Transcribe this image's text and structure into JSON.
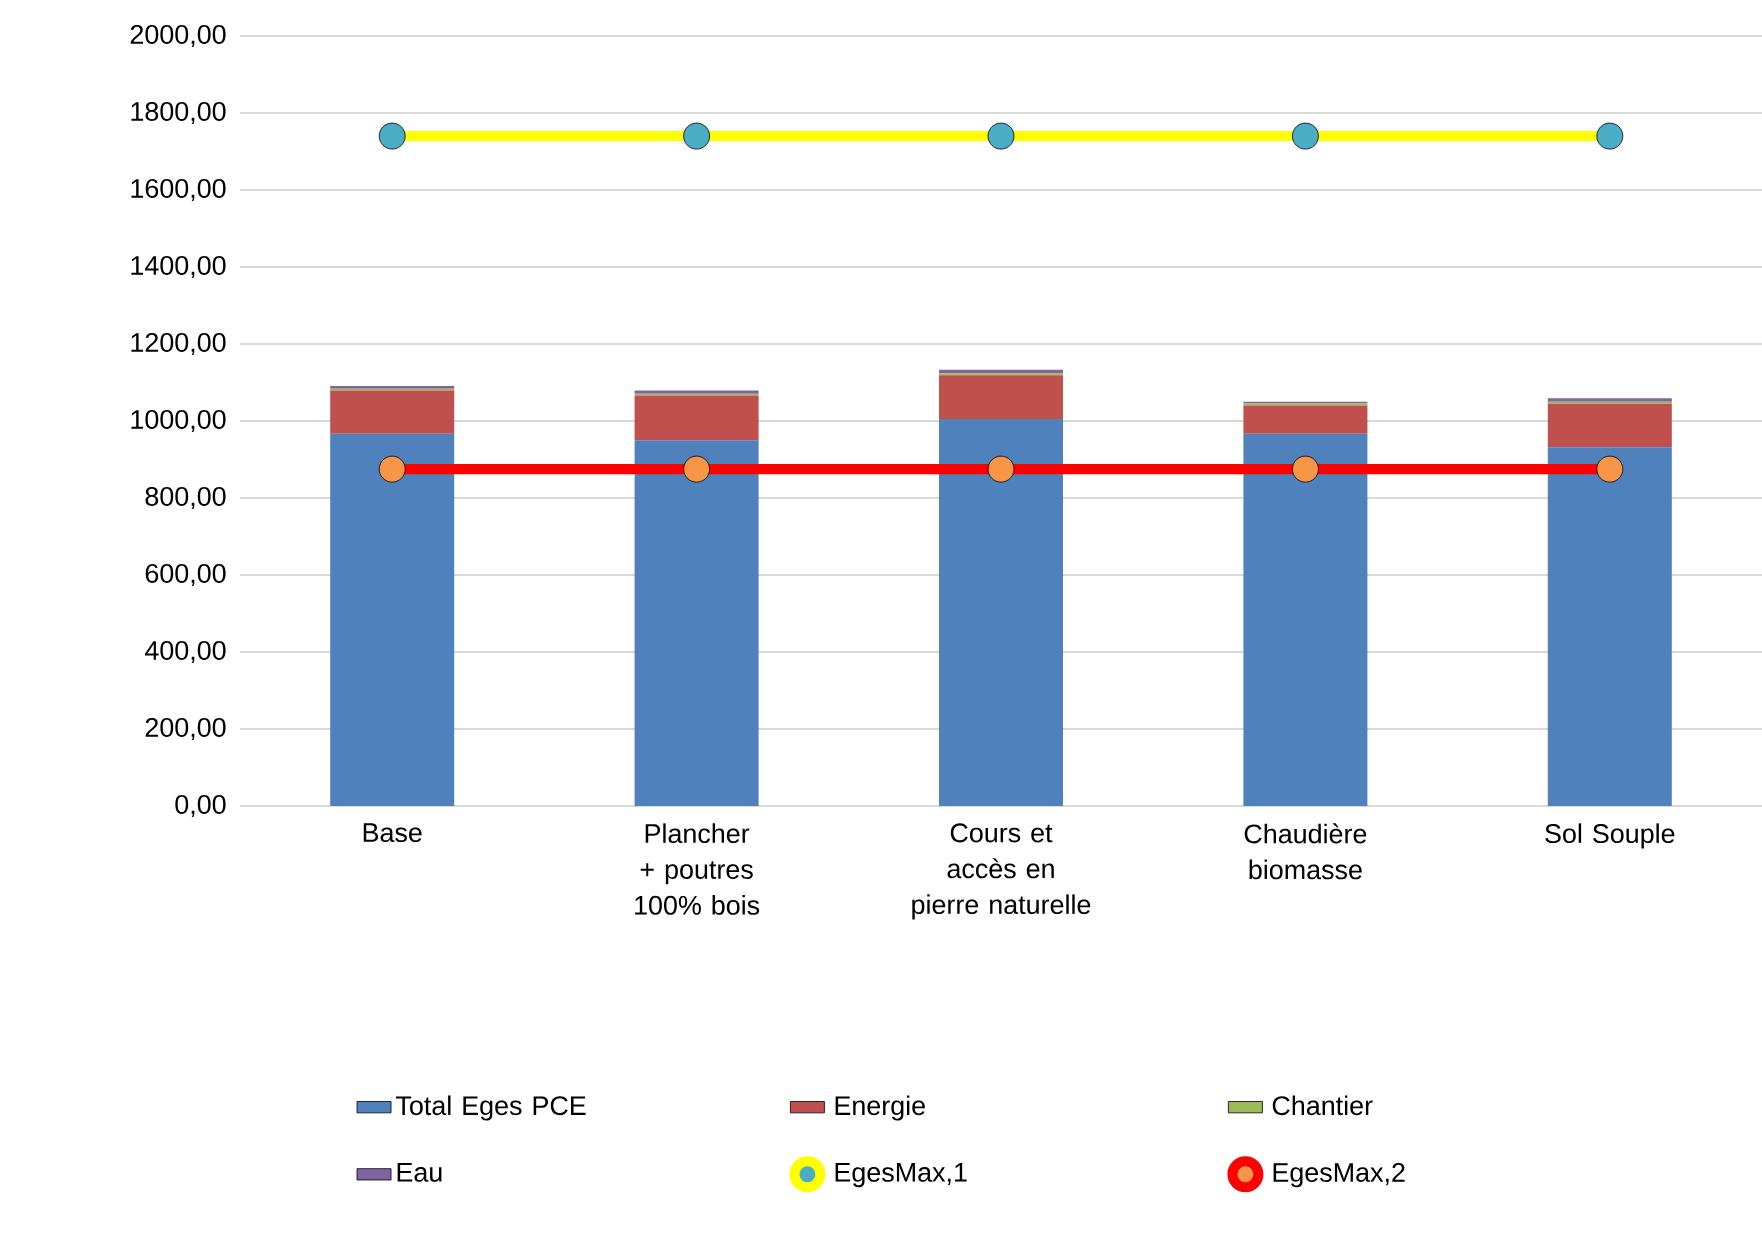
{
  "chart_data": {
    "type": "bar",
    "stacked": true,
    "categories": [
      "Base",
      "Plancher + poutres 100% bois",
      "Cours et accès en pierre naturelle",
      "Chaudière biomasse",
      "Sol Souple"
    ],
    "series": [
      {
        "name": "Total Eges PCE",
        "color": "#4f81bd",
        "values": [
          967,
          950,
          1005,
          967,
          932
        ]
      },
      {
        "name": "Energie",
        "color": "#c0504d",
        "values": [
          112,
          116,
          114,
          73,
          113
        ]
      },
      {
        "name": "Chantier",
        "color": "#9bbb59",
        "values": [
          5,
          5,
          5,
          6,
          5
        ]
      },
      {
        "name": "Eau",
        "color": "#8064a2",
        "values": [
          7,
          8,
          9,
          4,
          9
        ]
      },
      {
        "name": "EgesMax,1",
        "type": "line",
        "color": "#ffff00",
        "colors": [
          "#4bacc6",
          "#4bacc6",
          "#4bacc6",
          "#4bacc6",
          "#4bacc6"
        ],
        "marker": "circle",
        "values": [
          1740,
          1740,
          1740,
          1740,
          1740
        ]
      },
      {
        "name": "EgesMax,2",
        "type": "line",
        "color": "#ff0000",
        "colors": [
          "#f79646",
          "#f79646",
          "#f79646",
          "#f79646",
          "#f79646"
        ],
        "marker": "circle",
        "values": [
          875,
          875,
          875,
          875,
          875
        ]
      }
    ],
    "ylim": [
      0,
      2000
    ],
    "yticks": [
      {
        "value": 0,
        "label": "0,00"
      },
      {
        "value": 200,
        "label": "200,00"
      },
      {
        "value": 400,
        "label": "400,00"
      },
      {
        "value": 600,
        "label": "600,00"
      },
      {
        "value": 800,
        "label": "800,00"
      },
      {
        "value": 1000,
        "label": "1000,00"
      },
      {
        "value": 1200,
        "label": "1200,00"
      },
      {
        "value": 1400,
        "label": "1400,00"
      },
      {
        "value": 1600,
        "label": "1600,00"
      },
      {
        "value": 1800,
        "label": "1800,00"
      },
      {
        "value": 2000,
        "label": "2000,00"
      }
    ],
    "grid": "y",
    "legend": "bottom"
  }
}
